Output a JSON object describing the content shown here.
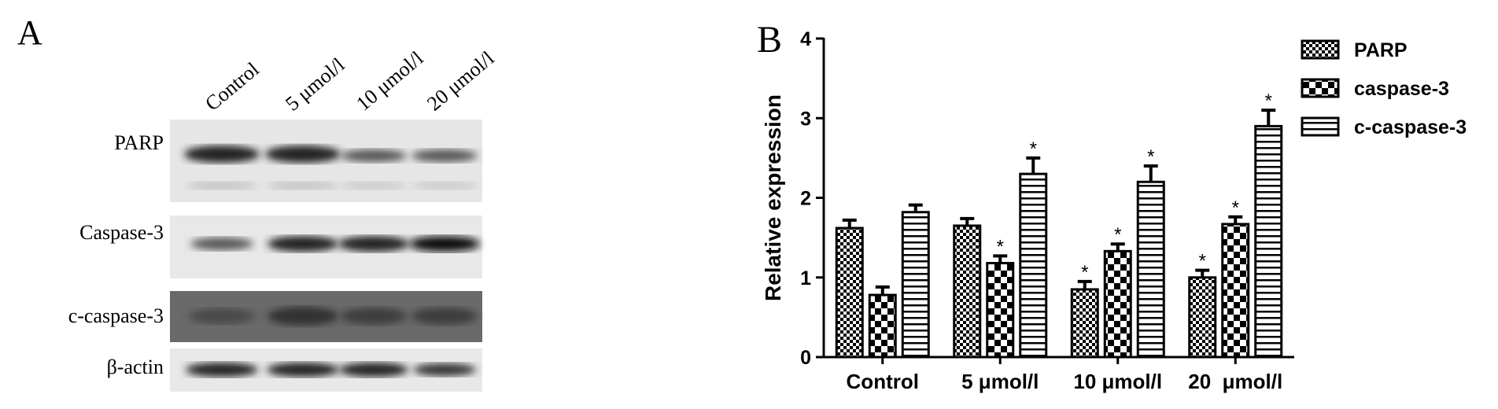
{
  "panel_a": {
    "label": "A",
    "lanes": [
      "Control",
      "5 μmol/l",
      "10 μmol/l",
      "20 μmol/l"
    ],
    "rows": [
      "PARP",
      "Caspase-3",
      "c-caspase-3",
      "β-actin"
    ]
  },
  "chart_data": {
    "type": "bar",
    "panel_label": "B",
    "y_label": "Relative expression",
    "categories": [
      "Control",
      "5 μmol/l",
      "10 μmol/l",
      "20  μmol/l"
    ],
    "series": [
      {
        "name": "PARP",
        "color": "#000000",
        "pattern": "fine-check",
        "values": [
          1.62,
          1.65,
          0.85,
          1.0
        ],
        "errors": [
          0.1,
          0.09,
          0.1,
          0.09
        ],
        "labels": [
          null,
          null,
          "*",
          "*"
        ]
      },
      {
        "name": "caspase-3",
        "color": "#000000",
        "pattern": "big-check",
        "values": [
          0.78,
          1.18,
          1.33,
          1.67
        ],
        "errors": [
          0.1,
          0.09,
          0.09,
          0.09
        ],
        "labels": [
          null,
          "*",
          "*",
          "*"
        ]
      },
      {
        "name": "c-caspase-3",
        "color": "#000000",
        "pattern": "hlines",
        "values": [
          1.82,
          2.3,
          2.2,
          2.9
        ],
        "errors": [
          0.09,
          0.2,
          0.2,
          0.2
        ],
        "labels": [
          null,
          "*",
          "*",
          "*"
        ]
      }
    ],
    "ylim": [
      0,
      4
    ],
    "yticks": [
      0,
      1,
      2,
      3,
      4
    ],
    "legend": "upper right"
  }
}
